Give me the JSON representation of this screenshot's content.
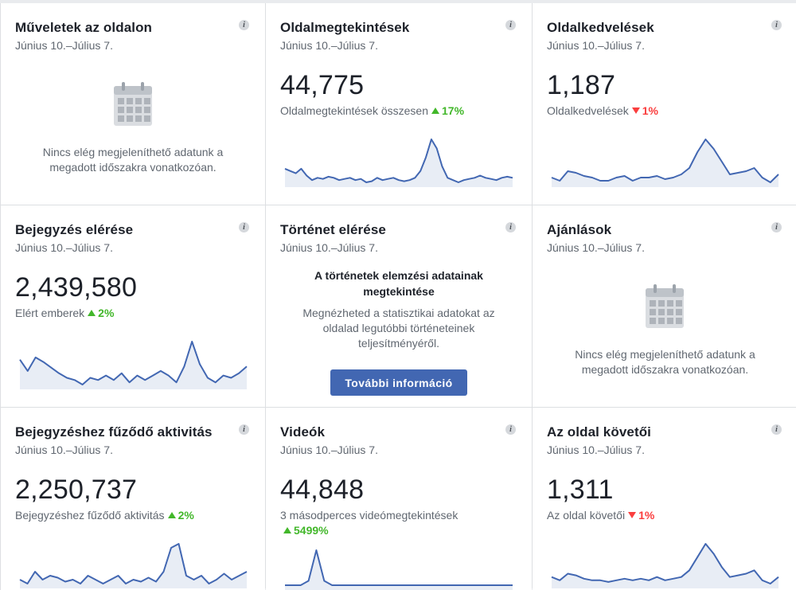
{
  "colors": {
    "line": "#4267b2",
    "fill": "#e8edf5",
    "up": "#42b72a",
    "down": "#fa3e3e",
    "button": "#4267b2"
  },
  "cards": [
    {
      "title": "Műveletek az oldalon",
      "date": "Június 10.–Július 7.",
      "type": "empty",
      "empty_text": "Nincs elég megjeleníthető adatunk a megadott időszakra vonatkozóan.",
      "icon": "calendar-icon"
    },
    {
      "title": "Oldalmegtekintések",
      "date": "Június 10.–Július 7.",
      "type": "metric",
      "value": "44,775",
      "label": "Oldalmegtekintések összesen",
      "change": "17%",
      "direction": "up",
      "series": [
        30,
        28,
        26,
        30,
        24,
        20,
        22,
        21,
        23,
        22,
        20,
        21,
        22,
        20,
        21,
        18,
        19,
        22,
        20,
        21,
        22,
        20,
        19,
        20,
        22,
        28,
        40,
        56,
        48,
        32,
        22,
        20,
        18,
        20,
        21,
        22,
        24,
        22,
        21,
        20,
        22,
        23,
        22
      ]
    },
    {
      "title": "Oldalkedvelések",
      "date": "Június 10.–Július 7.",
      "type": "metric",
      "value": "1,187",
      "label": "Oldalkedvelések",
      "change": "1%",
      "direction": "down",
      "series": [
        12,
        10,
        16,
        15,
        13,
        12,
        10,
        10,
        12,
        13,
        10,
        12,
        12,
        13,
        11,
        12,
        14,
        18,
        28,
        36,
        30,
        22,
        14,
        15,
        16,
        18,
        12,
        9,
        14
      ]
    },
    {
      "title": "Bejegyzés elérése",
      "date": "Június 10.–Július 7.",
      "type": "metric",
      "value": "2,439,580",
      "label": "Elért emberek",
      "change": "2%",
      "direction": "up",
      "series": [
        32,
        22,
        34,
        30,
        25,
        20,
        16,
        14,
        10,
        16,
        14,
        18,
        14,
        20,
        12,
        18,
        14,
        18,
        22,
        18,
        12,
        26,
        48,
        28,
        16,
        12,
        18,
        16,
        20,
        26
      ]
    },
    {
      "title": "Történet elérése",
      "date": "Június 10.–Július 7.",
      "type": "story",
      "heading": "A történetek elemzési adatainak megtekintése",
      "description": "Megnézheted a statisztikai adatokat az oldalad legutóbbi történeteinek teljesítményéről.",
      "button": "További információ"
    },
    {
      "title": "Ajánlások",
      "date": "Június 10.–Július 7.",
      "type": "empty",
      "empty_text": "Nincs elég megjeleníthető adatunk a megadott időszakra vonatkozóan.",
      "icon": "calendar-icon"
    },
    {
      "title": "Bejegyzéshez fűződő aktivitás",
      "date": "Június 10.–Július 7.",
      "type": "metric",
      "value": "2,250,737",
      "label": "Bejegyzéshez fűződő aktivitás",
      "change": "2%",
      "direction": "up",
      "series": [
        12,
        10,
        16,
        12,
        14,
        13,
        11,
        12,
        10,
        14,
        12,
        10,
        12,
        14,
        10,
        12,
        11,
        13,
        11,
        16,
        28,
        30,
        14,
        12,
        14,
        10,
        12,
        15,
        12,
        14,
        16
      ]
    },
    {
      "title": "Videók",
      "date": "Június 10.–Július 7.",
      "type": "metric",
      "value": "44,848",
      "label": "3 másodperces videómegtekintések",
      "change": "5499%",
      "direction": "up",
      "series": [
        0,
        0,
        0,
        5,
        40,
        5,
        0,
        0,
        0,
        0,
        0,
        0,
        0,
        0,
        0,
        0,
        0,
        0,
        0,
        0,
        0,
        0,
        0,
        0,
        0,
        0,
        0,
        0,
        0,
        0
      ]
    },
    {
      "title": "Az oldal követői",
      "date": "Június 10.–Július 7.",
      "type": "metric",
      "value": "1,311",
      "label": "Az oldal követői",
      "change": "1%",
      "direction": "down",
      "series": [
        14,
        12,
        16,
        15,
        13,
        12,
        12,
        11,
        12,
        13,
        12,
        13,
        12,
        14,
        12,
        13,
        14,
        18,
        26,
        34,
        28,
        20,
        14,
        15,
        16,
        18,
        12,
        10,
        14
      ]
    }
  ]
}
